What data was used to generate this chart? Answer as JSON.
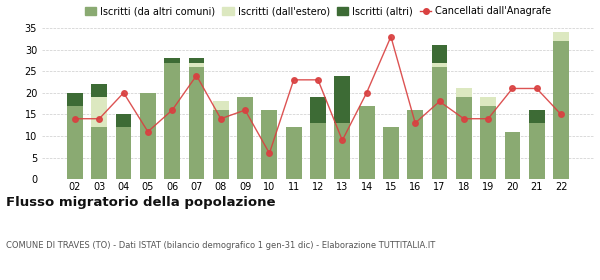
{
  "years": [
    "02",
    "03",
    "04",
    "05",
    "06",
    "07",
    "08",
    "09",
    "10",
    "11",
    "12",
    "13",
    "14",
    "15",
    "16",
    "17",
    "18",
    "19",
    "20",
    "21",
    "22"
  ],
  "iscritti_altri_comuni": [
    17,
    12,
    12,
    20,
    27,
    26,
    16,
    19,
    16,
    12,
    13,
    13,
    17,
    12,
    16,
    26,
    19,
    17,
    11,
    13,
    32
  ],
  "iscritti_estero": [
    0,
    7,
    0,
    0,
    0,
    1,
    2,
    0,
    0,
    0,
    0,
    0,
    0,
    0,
    0,
    1,
    2,
    2,
    0,
    0,
    2
  ],
  "iscritti_altri": [
    3,
    3,
    3,
    0,
    1,
    1,
    0,
    0,
    0,
    0,
    6,
    11,
    0,
    0,
    0,
    4,
    0,
    0,
    0,
    3,
    0
  ],
  "cancellati": [
    14,
    14,
    20,
    11,
    16,
    24,
    14,
    16,
    6,
    23,
    23,
    9,
    20,
    33,
    13,
    18,
    14,
    14,
    21,
    21,
    15
  ],
  "color_altri_comuni": "#8aaa72",
  "color_estero": "#dce8c0",
  "color_altri": "#3d6b35",
  "color_cancellati": "#d94040",
  "title": "Flusso migratorio della popolazione",
  "subtitle": "COMUNE DI TRAVES (TO) - Dati ISTAT (bilancio demografico 1 gen-31 dic) - Elaborazione TUTTITALIA.IT",
  "ylim": [
    0,
    35
  ],
  "yticks": [
    0,
    5,
    10,
    15,
    20,
    25,
    30,
    35
  ],
  "legend_labels": [
    "Iscritti (da altri comuni)",
    "Iscritti (dall'estero)",
    "Iscritti (altri)",
    "Cancellati dall'Anagrafe"
  ],
  "background_color": "#ffffff",
  "grid_color": "#cccccc"
}
